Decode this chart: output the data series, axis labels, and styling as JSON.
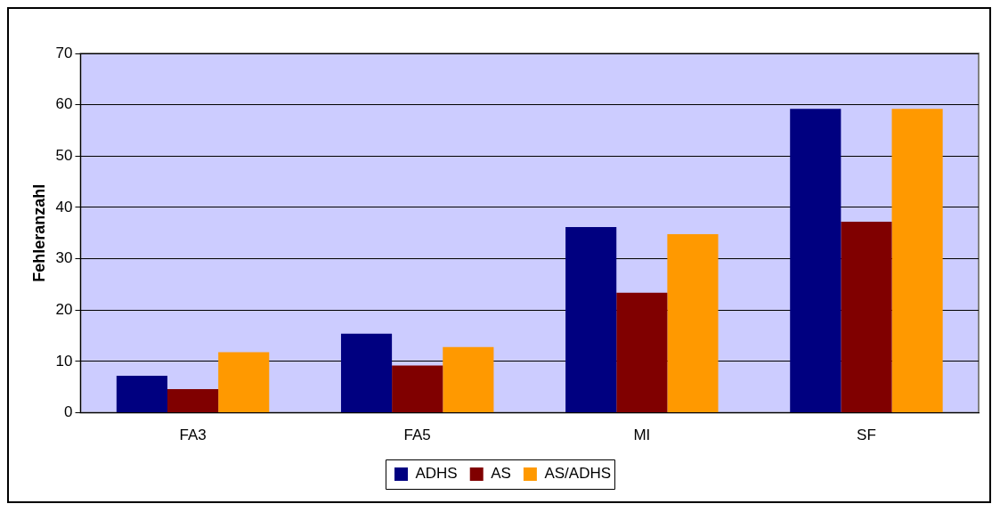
{
  "chart_data": {
    "type": "bar",
    "ylabel": "Fehleranzahl",
    "categories": [
      "FA3",
      "FA5",
      "MI",
      "SF"
    ],
    "series": [
      {
        "name": "ADHS",
        "color": "#000080",
        "values": [
          7.2,
          15.4,
          36.2,
          59.2
        ]
      },
      {
        "name": "AS",
        "color": "#800000",
        "values": [
          4.6,
          9.2,
          23.4,
          37.2
        ]
      },
      {
        "name": "AS/ADHS",
        "color": "#ff9900",
        "values": [
          11.8,
          12.8,
          34.8,
          59.2
        ]
      }
    ],
    "ylim": [
      0,
      70
    ],
    "yticks": [
      0,
      10,
      20,
      30,
      40,
      50,
      60,
      70
    ],
    "grid": "y",
    "legend": "bottom"
  }
}
